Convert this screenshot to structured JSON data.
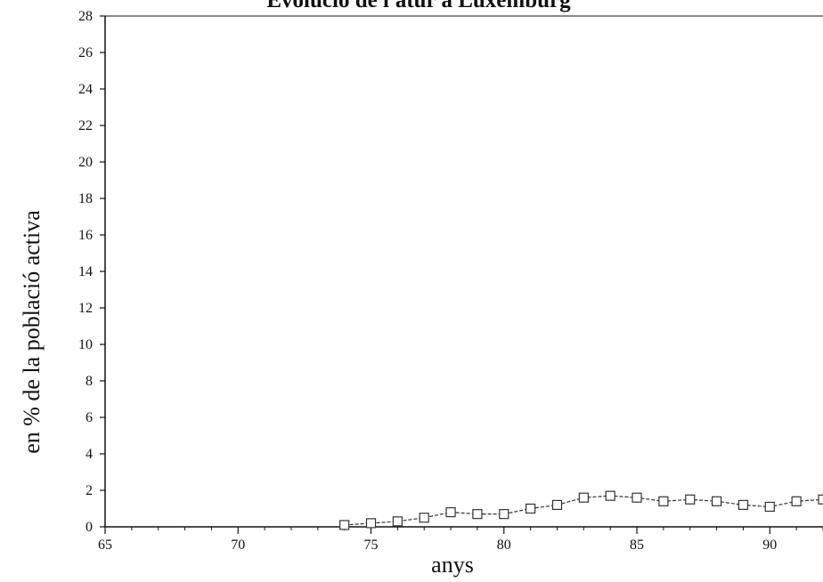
{
  "chart_data": {
    "type": "line",
    "title": "Evolució de l'atur a Luxemburg",
    "xlabel": "anys",
    "ylabel": "en % de la població activa",
    "xlim": [
      65,
      92
    ],
    "ylim": [
      0,
      28
    ],
    "x_ticks": [
      65,
      70,
      75,
      80,
      85,
      90
    ],
    "y_ticks": [
      0,
      2,
      4,
      6,
      8,
      10,
      12,
      14,
      16,
      18,
      20,
      22,
      24,
      26,
      28
    ],
    "grid": false,
    "legend": "none",
    "colors": {
      "line": "#333333",
      "axis": "#111111"
    },
    "series": [
      {
        "marker": "square",
        "x": [
          74,
          75,
          76,
          77,
          78,
          79,
          80,
          81,
          82,
          83,
          84,
          85,
          86,
          87,
          88,
          89,
          90,
          91,
          92
        ],
        "y": [
          0.1,
          0.2,
          0.3,
          0.5,
          0.8,
          0.7,
          0.7,
          1.0,
          1.2,
          1.6,
          1.7,
          1.6,
          1.4,
          1.5,
          1.4,
          1.2,
          1.1,
          1.4,
          1.5
        ]
      }
    ]
  }
}
